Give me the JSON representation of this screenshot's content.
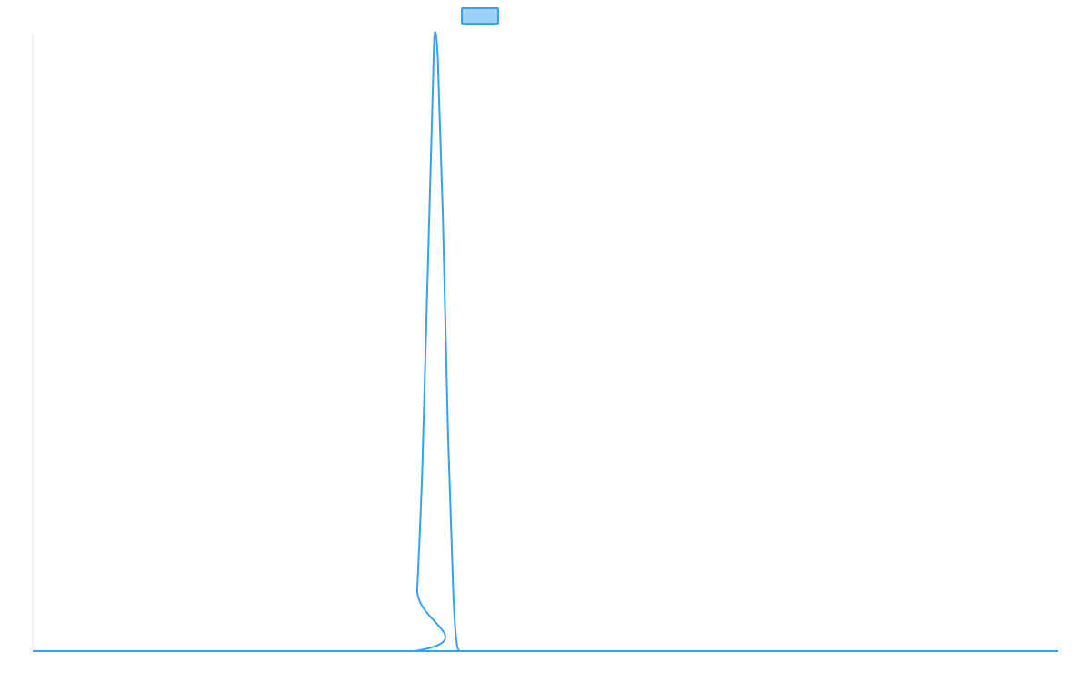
{
  "chart_data": {
    "type": "line",
    "title": "",
    "xlabel": "",
    "ylabel": "",
    "grid": false,
    "legend_position": "top-center",
    "xlim": [
      0,
      100
    ],
    "ylim": [
      0,
      1
    ],
    "series": [
      {
        "name": "",
        "color": "#36a2eb",
        "fill_color": "#9ad0f5",
        "x": [
          0,
          37.2,
          37.5,
          38,
          38.5,
          39,
          39.2,
          39.5,
          40,
          40.5,
          41,
          41.3,
          41.6,
          42,
          100
        ],
        "y": [
          0,
          0,
          0.1,
          0.3,
          0.6,
          0.9,
          1.0,
          0.96,
          0.7,
          0.35,
          0.1,
          0.02,
          0,
          0,
          0
        ]
      }
    ]
  }
}
